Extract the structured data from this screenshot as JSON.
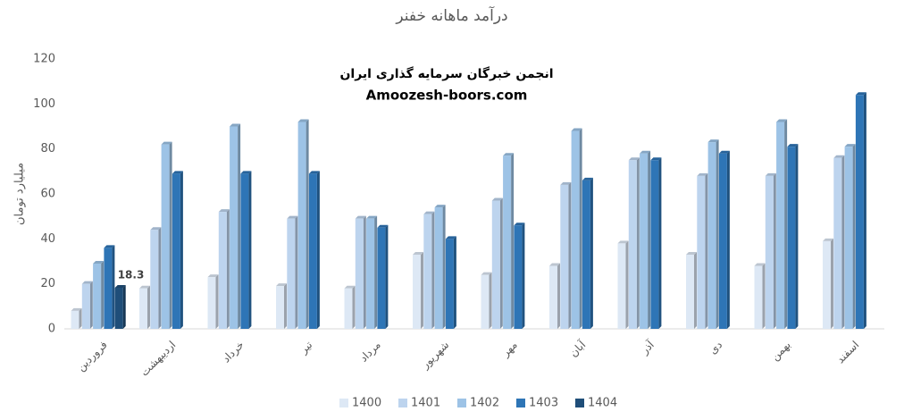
{
  "chart_data": {
    "type": "bar3d",
    "title": "درآمد ماهانه خفنر",
    "y_label": "میلیارد تومان",
    "annotations": [
      "انجمن خبرگان سرمایه گذاری ایران",
      "Amoozesh-boors.com"
    ],
    "categories": [
      "فروردین",
      "اردیبهشت",
      "خرداد",
      "تیر",
      "مرداد",
      "شهریور",
      "مهر",
      "آبان",
      "آذر",
      "دی",
      "بهمن",
      "اسفند"
    ],
    "series": [
      {
        "name": "1400",
        "color": "#dde8f5",
        "values": [
          8,
          18,
          23,
          19,
          18,
          33,
          24,
          28,
          38,
          33,
          28,
          39
        ]
      },
      {
        "name": "1401",
        "color": "#bdd4ee",
        "values": [
          20,
          44,
          52,
          49,
          49,
          51,
          57,
          64,
          75,
          68,
          68,
          76
        ]
      },
      {
        "name": "1402",
        "color": "#9dc3e6",
        "values": [
          29,
          82,
          90,
          92,
          49,
          54,
          77,
          88,
          78,
          83,
          92,
          81
        ]
      },
      {
        "name": "1403",
        "color": "#2e75b6",
        "values": [
          36,
          69,
          69,
          69,
          45,
          40,
          46,
          66,
          75,
          78,
          81,
          104
        ]
      },
      {
        "name": "1404",
        "color": "#1f4e79",
        "show_value_labels": true,
        "values": [
          18.3,
          null,
          null,
          null,
          null,
          null,
          null,
          null,
          null,
          null,
          null,
          null
        ]
      }
    ],
    "ylim": [
      0,
      120
    ],
    "yticks": [
      0,
      20,
      40,
      60,
      80,
      100,
      120
    ],
    "grid": false,
    "legend": "bottom"
  }
}
